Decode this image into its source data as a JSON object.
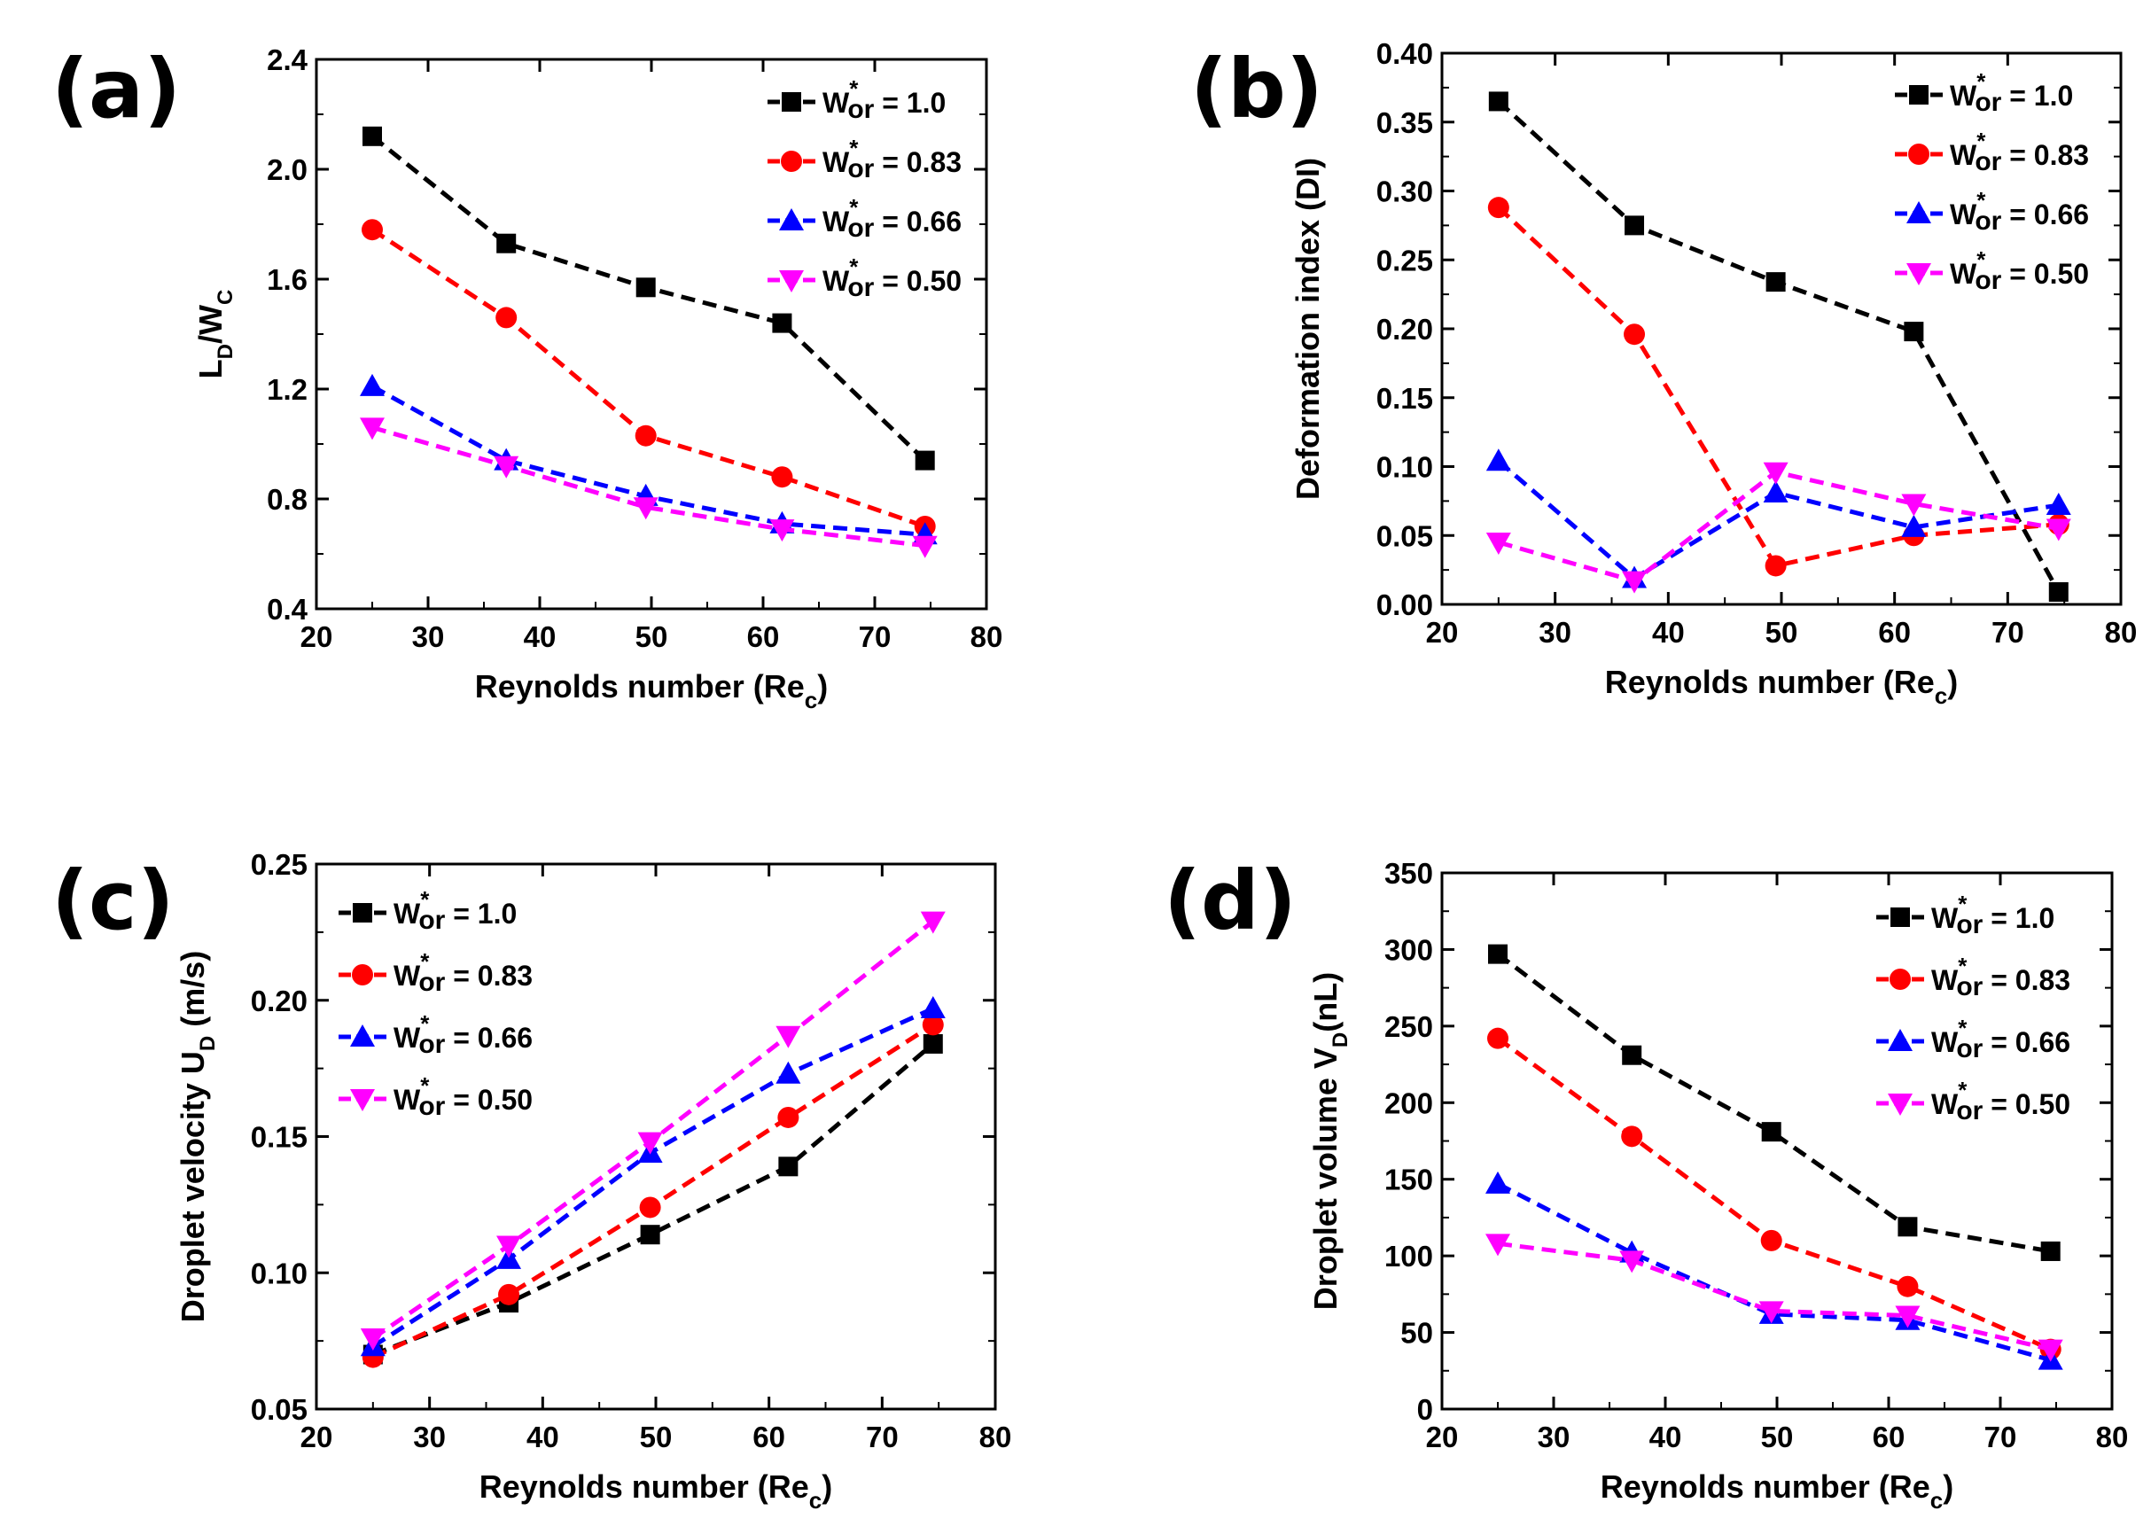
{
  "chart_data": [
    {
      "type": "line",
      "panel_label": "(a)",
      "xlabel": "Reynolds number (Re",
      "xlabel_sub": "c",
      "ylabel": "L",
      "ylabel_sub1": "D",
      "ylabel_mid": "/W",
      "ylabel_sub2": "C",
      "xlim": [
        20,
        80
      ],
      "ylim": [
        0.4,
        2.4
      ],
      "xticks": [
        "20",
        "30",
        "40",
        "50",
        "60",
        "70",
        "80"
      ],
      "yticks": [
        "0.4",
        "0.8",
        "1.2",
        "1.6",
        "2.0",
        "2.4"
      ],
      "legend_position": "top-right",
      "x": [
        25,
        37,
        49.5,
        61.7,
        74.5
      ],
      "series": [
        {
          "name": "W*or = 1.0",
          "legend_main": "W",
          "legend_sup": "*",
          "legend_sub": "or",
          "legend_value": " = 1.0",
          "color": "#000000",
          "marker": "square",
          "values": [
            2.12,
            1.73,
            1.57,
            1.44,
            0.94
          ]
        },
        {
          "name": "W*or = 0.83",
          "legend_main": "W",
          "legend_sup": "*",
          "legend_sub": "or",
          "legend_value": " = 0.83",
          "color": "#ff0000",
          "marker": "circle",
          "values": [
            1.78,
            1.46,
            1.03,
            0.88,
            0.7
          ]
        },
        {
          "name": "W*or = 0.66",
          "legend_main": "W",
          "legend_sup": "*",
          "legend_sub": "or",
          "legend_value": " = 0.66",
          "color": "#0000ff",
          "marker": "triangle-up",
          "values": [
            1.21,
            0.94,
            0.81,
            0.71,
            0.67
          ]
        },
        {
          "name": "W*or = 0.50",
          "legend_main": "W",
          "legend_sup": "*",
          "legend_sub": "or",
          "legend_value": " = 0.50",
          "color": "#ff00ff",
          "marker": "triangle-down",
          "values": [
            1.06,
            0.92,
            0.77,
            0.69,
            0.63
          ]
        }
      ]
    },
    {
      "type": "line",
      "panel_label": "(b)",
      "xlabel": "Reynolds number (Re",
      "xlabel_sub": "c",
      "ylabel": "Deformation index (DI)",
      "xlim": [
        20,
        80
      ],
      "ylim": [
        0.0,
        0.4
      ],
      "xticks": [
        "20",
        "30",
        "40",
        "50",
        "60",
        "70",
        "80"
      ],
      "yticks": [
        "0.00",
        "0.05",
        "0.10",
        "0.15",
        "0.20",
        "0.25",
        "0.30",
        "0.35",
        "0.40"
      ],
      "legend_position": "top-right",
      "x": [
        25,
        37,
        49.5,
        61.7,
        74.5
      ],
      "series": [
        {
          "name": "W*or = 1.0",
          "legend_main": "W",
          "legend_sup": "*",
          "legend_sub": "or",
          "legend_value": " = 1.0",
          "color": "#000000",
          "marker": "square",
          "values": [
            0.365,
            0.275,
            0.234,
            0.198,
            0.009
          ]
        },
        {
          "name": "W*or = 0.83",
          "legend_main": "W",
          "legend_sup": "*",
          "legend_sub": "or",
          "legend_value": " = 0.83",
          "color": "#ff0000",
          "marker": "circle",
          "values": [
            0.288,
            0.196,
            0.028,
            0.05,
            0.058
          ]
        },
        {
          "name": "W*or = 0.66",
          "legend_main": "W",
          "legend_sup": "*",
          "legend_sub": "or",
          "legend_value": " = 0.66",
          "color": "#0000ff",
          "marker": "triangle-up",
          "values": [
            0.104,
            0.019,
            0.081,
            0.056,
            0.072
          ]
        },
        {
          "name": "W*or = 0.50",
          "legend_main": "W",
          "legend_sup": "*",
          "legend_sub": "or",
          "legend_value": " = 0.50",
          "color": "#ff00ff",
          "marker": "triangle-down",
          "values": [
            0.045,
            0.017,
            0.096,
            0.073,
            0.055
          ]
        }
      ]
    },
    {
      "type": "line",
      "panel_label": "(c)",
      "xlabel": "Reynolds number (Re",
      "xlabel_sub": "c",
      "ylabel": "Droplet velocity U",
      "ylabel_sub1": "D",
      "ylabel_mid": " (m/s)",
      "xlim": [
        20,
        80
      ],
      "ylim": [
        0.05,
        0.25
      ],
      "xticks": [
        "20",
        "30",
        "40",
        "50",
        "60",
        "70",
        "80"
      ],
      "yticks": [
        "0.05",
        "0.10",
        "0.15",
        "0.20",
        "0.25"
      ],
      "legend_position": "top-left",
      "x": [
        25,
        37,
        49.5,
        61.7,
        74.5
      ],
      "series": [
        {
          "name": "W*or = 1.0",
          "legend_main": "W",
          "legend_sup": "*",
          "legend_sub": "or",
          "legend_value": " = 1.0",
          "color": "#000000",
          "marker": "square",
          "values": [
            0.07,
            0.089,
            0.114,
            0.139,
            0.184
          ]
        },
        {
          "name": "W*or = 0.83",
          "legend_main": "W",
          "legend_sup": "*",
          "legend_sub": "or",
          "legend_value": " = 0.83",
          "color": "#ff0000",
          "marker": "circle",
          "values": [
            0.069,
            0.092,
            0.124,
            0.157,
            0.191
          ]
        },
        {
          "name": "W*or = 0.66",
          "legend_main": "W",
          "legend_sup": "*",
          "legend_sub": "or",
          "legend_value": " = 0.66",
          "color": "#0000ff",
          "marker": "triangle-up",
          "values": [
            0.073,
            0.105,
            0.144,
            0.173,
            0.197
          ]
        },
        {
          "name": "W*or = 0.50",
          "legend_main": "W",
          "legend_sup": "*",
          "legend_sub": "or",
          "legend_value": " = 0.50",
          "color": "#ff00ff",
          "marker": "triangle-down",
          "values": [
            0.076,
            0.11,
            0.148,
            0.187,
            0.229
          ]
        }
      ]
    },
    {
      "type": "line",
      "panel_label": "(d)",
      "xlabel": "Reynolds number (Re",
      "xlabel_sub": "c",
      "ylabel": "Droplet volume V",
      "ylabel_sub1": "D",
      "ylabel_mid": "(nL)",
      "xlim": [
        20,
        80
      ],
      "ylim": [
        0,
        350
      ],
      "xticks": [
        "20",
        "30",
        "40",
        "50",
        "60",
        "70",
        "80"
      ],
      "yticks": [
        "0",
        "50",
        "100",
        "150",
        "200",
        "250",
        "300",
        "350"
      ],
      "legend_position": "top-right",
      "x": [
        25,
        37,
        49.5,
        61.7,
        74.5
      ],
      "series": [
        {
          "name": "W*or = 1.0",
          "legend_main": "W",
          "legend_sup": "*",
          "legend_sub": "or",
          "legend_value": " = 1.0",
          "color": "#000000",
          "marker": "square",
          "values": [
            297,
            231,
            181,
            119,
            103
          ]
        },
        {
          "name": "W*or = 0.83",
          "legend_main": "W",
          "legend_sup": "*",
          "legend_sub": "or",
          "legend_value": " = 0.83",
          "color": "#ff0000",
          "marker": "circle",
          "values": [
            242,
            178,
            110,
            80,
            39
          ]
        },
        {
          "name": "W*or = 0.66",
          "legend_main": "W",
          "legend_sup": "*",
          "legend_sub": "or",
          "legend_value": " = 0.66",
          "color": "#0000ff",
          "marker": "triangle-up",
          "values": [
            147,
            102,
            62,
            58,
            32
          ]
        },
        {
          "name": "W*or = 0.50",
          "legend_main": "W",
          "legend_sup": "*",
          "legend_sub": "or",
          "legend_value": " = 0.50",
          "color": "#ff00ff",
          "marker": "triangle-down",
          "values": [
            108,
            97,
            64,
            61,
            39
          ]
        }
      ]
    }
  ]
}
